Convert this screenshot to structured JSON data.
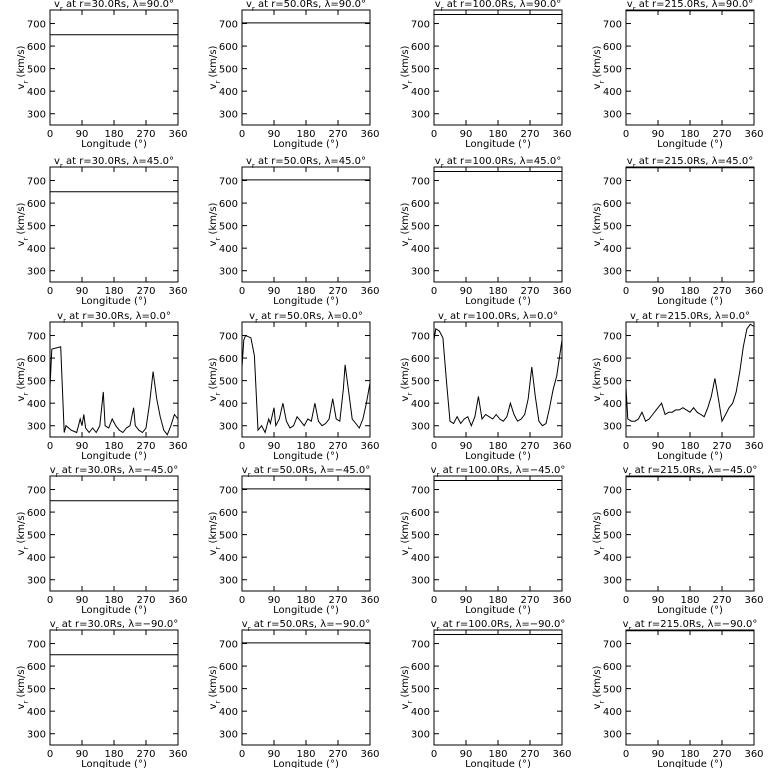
{
  "chart_data": [
    {
      "type": "line",
      "title": [
        "v",
        "r",
        " at r=30.0Rs,  λ=90.0°"
      ],
      "xlabel": "Longitude (°)",
      "ylabel": [
        "v",
        "r",
        " (km/s)"
      ],
      "x": [
        0,
        360
      ],
      "values": [
        650,
        650
      ],
      "color": "#000000",
      "xlim": [
        0,
        360
      ],
      "ylim": [
        250,
        760
      ],
      "xticks": [
        0,
        90,
        180,
        270,
        360
      ],
      "yticks": [
        300,
        400,
        500,
        600,
        700
      ]
    },
    {
      "type": "line",
      "title": [
        "v",
        "r",
        " at r=50.0Rs,  λ=90.0°"
      ],
      "xlabel": "Longitude (°)",
      "ylabel": [
        "v",
        "r",
        " (km/s)"
      ],
      "x": [
        0,
        360
      ],
      "values": [
        703,
        703
      ],
      "color": "#000000",
      "xlim": [
        0,
        360
      ],
      "ylim": [
        250,
        760
      ],
      "xticks": [
        0,
        90,
        180,
        270,
        360
      ],
      "yticks": [
        300,
        400,
        500,
        600,
        700
      ]
    },
    {
      "type": "line",
      "title": [
        "v",
        "r",
        " at r=100.0Rs,  λ=90.0°"
      ],
      "xlabel": "Longitude (°)",
      "ylabel": [
        "v",
        "r",
        " (km/s)"
      ],
      "x": [
        0,
        360
      ],
      "values": [
        740,
        740
      ],
      "color": "#000000",
      "xlim": [
        0,
        360
      ],
      "ylim": [
        250,
        760
      ],
      "xticks": [
        0,
        90,
        180,
        270,
        360
      ],
      "yticks": [
        300,
        400,
        500,
        600,
        700
      ]
    },
    {
      "type": "line",
      "title": [
        "v",
        "r",
        " at r=215.0Rs,  λ=90.0°"
      ],
      "xlabel": "Longitude (°)",
      "ylabel": [
        "v",
        "r",
        " (km/s)"
      ],
      "x": [
        0,
        360
      ],
      "values": [
        757,
        757
      ],
      "color": "#000000",
      "xlim": [
        0,
        360
      ],
      "ylim": [
        250,
        760
      ],
      "xticks": [
        0,
        90,
        180,
        270,
        360
      ],
      "yticks": [
        300,
        400,
        500,
        600,
        700
      ]
    },
    {
      "type": "line",
      "title": [
        "v",
        "r",
        " at r=30.0Rs,  λ=45.0°"
      ],
      "xlabel": "Longitude (°)",
      "ylabel": [
        "v",
        "r",
        " (km/s)"
      ],
      "x": [
        0,
        360
      ],
      "values": [
        650,
        650
      ],
      "color": "#000000",
      "xlim": [
        0,
        360
      ],
      "ylim": [
        250,
        760
      ],
      "xticks": [
        0,
        90,
        180,
        270,
        360
      ],
      "yticks": [
        300,
        400,
        500,
        600,
        700
      ]
    },
    {
      "type": "line",
      "title": [
        "v",
        "r",
        " at r=50.0Rs,  λ=45.0°"
      ],
      "xlabel": "Longitude (°)",
      "ylabel": [
        "v",
        "r",
        " (km/s)"
      ],
      "x": [
        0,
        360
      ],
      "values": [
        703,
        703
      ],
      "color": "#000000",
      "xlim": [
        0,
        360
      ],
      "ylim": [
        250,
        760
      ],
      "xticks": [
        0,
        90,
        180,
        270,
        360
      ],
      "yticks": [
        300,
        400,
        500,
        600,
        700
      ]
    },
    {
      "type": "line",
      "title": [
        "v",
        "r",
        " at r=100.0Rs,  λ=45.0°"
      ],
      "xlabel": "Longitude (°)",
      "ylabel": [
        "v",
        "r",
        " (km/s)"
      ],
      "x": [
        0,
        360
      ],
      "values": [
        740,
        740
      ],
      "color": "#000000",
      "xlim": [
        0,
        360
      ],
      "ylim": [
        250,
        760
      ],
      "xticks": [
        0,
        90,
        180,
        270,
        360
      ],
      "yticks": [
        300,
        400,
        500,
        600,
        700
      ]
    },
    {
      "type": "line",
      "title": [
        "v",
        "r",
        " at r=215.0Rs,  λ=45.0°"
      ],
      "xlabel": "Longitude (°)",
      "ylabel": [
        "v",
        "r",
        " (km/s)"
      ],
      "x": [
        0,
        360
      ],
      "values": [
        757,
        757
      ],
      "color": "#000000",
      "xlim": [
        0,
        360
      ],
      "ylim": [
        250,
        760
      ],
      "xticks": [
        0,
        90,
        180,
        270,
        360
      ],
      "yticks": [
        300,
        400,
        500,
        600,
        700
      ]
    },
    {
      "type": "line",
      "title": [
        "v",
        "r",
        " at r=30.0Rs,  λ=0.0°"
      ],
      "xlabel": "Longitude (°)",
      "ylabel": [
        "v",
        "r",
        " (km/s)"
      ],
      "x": [
        0,
        5,
        30,
        40,
        45,
        60,
        75,
        85,
        90,
        95,
        100,
        110,
        120,
        130,
        140,
        150,
        155,
        165,
        175,
        185,
        195,
        205,
        215,
        225,
        235,
        240,
        250,
        260,
        270,
        280,
        290,
        300,
        310,
        320,
        330,
        340,
        350,
        360
      ],
      "values": [
        470,
        640,
        650,
        270,
        300,
        280,
        270,
        330,
        300,
        350,
        290,
        270,
        290,
        270,
        300,
        450,
        300,
        290,
        330,
        300,
        280,
        270,
        290,
        300,
        380,
        300,
        280,
        270,
        290,
        400,
        540,
        420,
        340,
        280,
        260,
        300,
        350,
        330
      ],
      "color": "#000000",
      "xlim": [
        0,
        360
      ],
      "ylim": [
        250,
        760
      ],
      "xticks": [
        0,
        90,
        180,
        270,
        360
      ],
      "yticks": [
        300,
        400,
        500,
        600,
        700
      ]
    },
    {
      "type": "line",
      "title": [
        "v",
        "r",
        " at r=50.0Rs,  λ=0.0°"
      ],
      "xlabel": "Longitude (°)",
      "ylabel": [
        "v",
        "r",
        " (km/s)"
      ],
      "x": [
        0,
        5,
        10,
        25,
        35,
        45,
        55,
        65,
        75,
        80,
        90,
        95,
        105,
        115,
        125,
        135,
        145,
        155,
        165,
        175,
        185,
        195,
        205,
        215,
        225,
        235,
        245,
        255,
        265,
        275,
        285,
        290,
        300,
        310,
        320,
        330,
        340,
        350,
        360
      ],
      "values": [
        560,
        680,
        700,
        690,
        610,
        280,
        300,
        270,
        330,
        310,
        380,
        300,
        330,
        400,
        320,
        290,
        300,
        340,
        320,
        300,
        330,
        320,
        400,
        320,
        300,
        310,
        330,
        420,
        330,
        320,
        460,
        570,
        450,
        330,
        310,
        290,
        330,
        400,
        490
      ],
      "color": "#000000",
      "xlim": [
        0,
        360
      ],
      "ylim": [
        250,
        760
      ],
      "xticks": [
        0,
        90,
        180,
        270,
        360
      ],
      "yticks": [
        300,
        400,
        500,
        600,
        700
      ]
    },
    {
      "type": "line",
      "title": [
        "v",
        "r",
        " at r=100.0Rs,  λ=0.0°"
      ],
      "xlabel": "Longitude (°)",
      "ylabel": [
        "v",
        "r",
        " (km/s)"
      ],
      "x": [
        0,
        5,
        15,
        25,
        35,
        45,
        55,
        65,
        75,
        85,
        95,
        105,
        115,
        125,
        135,
        145,
        155,
        165,
        175,
        185,
        195,
        205,
        215,
        225,
        235,
        245,
        255,
        265,
        275,
        285,
        295,
        305,
        315,
        325,
        335,
        345,
        360
      ],
      "values": [
        680,
        730,
        720,
        690,
        500,
        320,
        310,
        340,
        310,
        330,
        340,
        300,
        340,
        430,
        330,
        350,
        340,
        330,
        350,
        330,
        320,
        340,
        400,
        350,
        320,
        330,
        350,
        420,
        560,
        430,
        320,
        300,
        310,
        380,
        460,
        520,
        680
      ],
      "color": "#000000",
      "xlim": [
        0,
        360
      ],
      "ylim": [
        250,
        760
      ],
      "xticks": [
        0,
        90,
        180,
        270,
        360
      ],
      "yticks": [
        300,
        400,
        500,
        600,
        700
      ]
    },
    {
      "type": "line",
      "title": [
        "v",
        "r",
        " at r=215.0Rs,  λ=0.0°"
      ],
      "xlabel": "Longitude (°)",
      "ylabel": [
        "v",
        "r",
        " (km/s)"
      ],
      "x": [
        0,
        5,
        15,
        25,
        35,
        45,
        55,
        65,
        75,
        85,
        95,
        100,
        110,
        120,
        130,
        140,
        150,
        160,
        170,
        180,
        190,
        200,
        210,
        220,
        230,
        240,
        250,
        260,
        270,
        280,
        290,
        300,
        310,
        320,
        330,
        340,
        350,
        360
      ],
      "values": [
        470,
        330,
        320,
        320,
        330,
        360,
        320,
        330,
        350,
        370,
        390,
        400,
        350,
        360,
        360,
        370,
        370,
        380,
        370,
        360,
        380,
        360,
        350,
        340,
        380,
        430,
        510,
        420,
        320,
        350,
        380,
        400,
        450,
        540,
        650,
        730,
        750,
        740
      ],
      "color": "#000000",
      "xlim": [
        0,
        360
      ],
      "ylim": [
        250,
        760
      ],
      "xticks": [
        0,
        90,
        180,
        270,
        360
      ],
      "yticks": [
        300,
        400,
        500,
        600,
        700
      ]
    },
    {
      "type": "line",
      "title": [
        "v",
        "r",
        " at r=30.0Rs,  λ=−45.0°"
      ],
      "xlabel": "Longitude (°)",
      "ylabel": [
        "v",
        "r",
        " (km/s)"
      ],
      "x": [
        0,
        360
      ],
      "values": [
        650,
        650
      ],
      "color": "#000000",
      "xlim": [
        0,
        360
      ],
      "ylim": [
        250,
        760
      ],
      "xticks": [
        0,
        90,
        180,
        270,
        360
      ],
      "yticks": [
        300,
        400,
        500,
        600,
        700
      ]
    },
    {
      "type": "line",
      "title": [
        "v",
        "r",
        " at r=50.0Rs,  λ=−45.0°"
      ],
      "xlabel": "Longitude (°)",
      "ylabel": [
        "v",
        "r",
        " (km/s)"
      ],
      "x": [
        0,
        360
      ],
      "values": [
        703,
        703
      ],
      "color": "#000000",
      "xlim": [
        0,
        360
      ],
      "ylim": [
        250,
        760
      ],
      "xticks": [
        0,
        90,
        180,
        270,
        360
      ],
      "yticks": [
        300,
        400,
        500,
        600,
        700
      ]
    },
    {
      "type": "line",
      "title": [
        "v",
        "r",
        " at r=100.0Rs,  λ=−45.0°"
      ],
      "xlabel": "Longitude (°)",
      "ylabel": [
        "v",
        "r",
        " (km/s)"
      ],
      "x": [
        0,
        360
      ],
      "values": [
        740,
        740
      ],
      "color": "#000000",
      "xlim": [
        0,
        360
      ],
      "ylim": [
        250,
        760
      ],
      "xticks": [
        0,
        90,
        180,
        270,
        360
      ],
      "yticks": [
        300,
        400,
        500,
        600,
        700
      ]
    },
    {
      "type": "line",
      "title": [
        "v",
        "r",
        " at r=215.0Rs,  λ=−45.0°"
      ],
      "xlabel": "Longitude (°)",
      "ylabel": [
        "v",
        "r",
        " (km/s)"
      ],
      "x": [
        0,
        360
      ],
      "values": [
        757,
        757
      ],
      "color": "#000000",
      "xlim": [
        0,
        360
      ],
      "ylim": [
        250,
        760
      ],
      "xticks": [
        0,
        90,
        180,
        270,
        360
      ],
      "yticks": [
        300,
        400,
        500,
        600,
        700
      ]
    },
    {
      "type": "line",
      "title": [
        "v",
        "r",
        " at r=30.0Rs,  λ=−90.0°"
      ],
      "xlabel": "Longitude (°)",
      "ylabel": [
        "v",
        "r",
        " (km/s)"
      ],
      "x": [
        0,
        360
      ],
      "values": [
        650,
        650
      ],
      "color": "#000000",
      "xlim": [
        0,
        360
      ],
      "ylim": [
        250,
        760
      ],
      "xticks": [
        0,
        90,
        180,
        270,
        360
      ],
      "yticks": [
        300,
        400,
        500,
        600,
        700
      ]
    },
    {
      "type": "line",
      "title": [
        "v",
        "r",
        " at r=50.0Rs,  λ=−90.0°"
      ],
      "xlabel": "Longitude (°)",
      "ylabel": [
        "v",
        "r",
        " (km/s)"
      ],
      "x": [
        0,
        360
      ],
      "values": [
        703,
        703
      ],
      "color": "#000000",
      "xlim": [
        0,
        360
      ],
      "ylim": [
        250,
        760
      ],
      "xticks": [
        0,
        90,
        180,
        270,
        360
      ],
      "yticks": [
        300,
        400,
        500,
        600,
        700
      ]
    },
    {
      "type": "line",
      "title": [
        "v",
        "r",
        " at r=100.0Rs,  λ=−90.0°"
      ],
      "xlabel": "Longitude (°)",
      "ylabel": [
        "v",
        "r",
        " (km/s)"
      ],
      "x": [
        0,
        360
      ],
      "values": [
        740,
        740
      ],
      "color": "#000000",
      "xlim": [
        0,
        360
      ],
      "ylim": [
        250,
        760
      ],
      "xticks": [
        0,
        90,
        180,
        270,
        360
      ],
      "yticks": [
        300,
        400,
        500,
        600,
        700
      ]
    },
    {
      "type": "line",
      "title": [
        "v",
        "r",
        " at r=215.0Rs,  λ=−90.0°"
      ],
      "xlabel": "Longitude (°)",
      "ylabel": [
        "v",
        "r",
        " (km/s)"
      ],
      "x": [
        0,
        360
      ],
      "values": [
        757,
        757
      ],
      "color": "#000000",
      "xlim": [
        0,
        360
      ],
      "ylim": [
        250,
        760
      ],
      "xticks": [
        0,
        90,
        180,
        270,
        360
      ],
      "yticks": [
        300,
        400,
        500,
        600,
        700
      ]
    }
  ]
}
